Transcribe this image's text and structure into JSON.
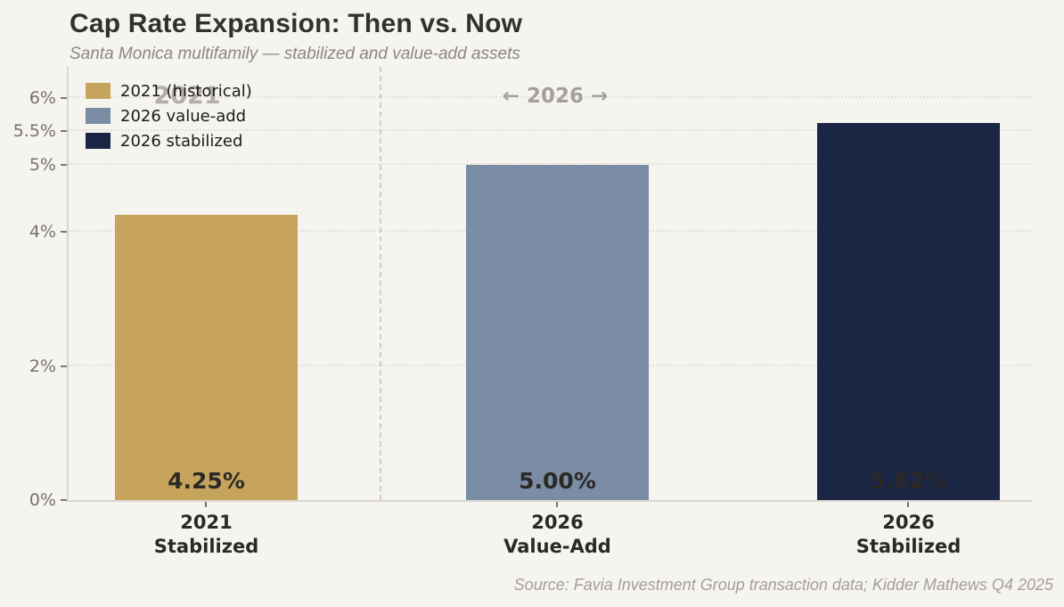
{
  "header": {
    "title": "Cap Rate Expansion: Then vs. Now",
    "subtitle": "Santa Monica multifamily — stabilized and value-add assets"
  },
  "annotations": {
    "left_era": "2021",
    "right_era": "← 2026 →"
  },
  "legend": {
    "items": [
      {
        "label": "2021 (historical)",
        "color": "#c6a45c"
      },
      {
        "label": "2026 value-add",
        "color": "#7b8da4"
      },
      {
        "label": "2026 stabilized",
        "color": "#1b2544"
      }
    ]
  },
  "source": "Source: Favia Investment Group transaction data; Kidder Mathews Q4 2025",
  "colors": {
    "background": "#f6f4ef",
    "gold": "#c6a45c",
    "slate": "#7b8da4",
    "navy": "#1b2544",
    "axis": "#d9d6d0",
    "separator": "#d0cdc7"
  },
  "chart_data": {
    "type": "bar",
    "title": "Cap Rate Expansion: Then vs. Now",
    "subtitle": "Santa Monica multifamily — stabilized and value-add assets",
    "categories": [
      "2021 Stabilized",
      "2026 Value-Add",
      "2026 Stabilized"
    ],
    "category_lines": [
      [
        "2021",
        "Stabilized"
      ],
      [
        "2026",
        "Value-Add"
      ],
      [
        "2026",
        "Stabilized"
      ]
    ],
    "values": [
      4.25,
      5.0,
      5.62
    ],
    "value_labels": [
      "4.25%",
      "5.00%",
      "5.62%"
    ],
    "bar_colors": [
      "#c6a45c",
      "#7b8da4",
      "#1b2544"
    ],
    "xlabel": "",
    "ylabel": "",
    "ylim": [
      0,
      6.5
    ],
    "yticks": [
      {
        "value": 0,
        "label": "0%"
      },
      {
        "value": 2,
        "label": "2%"
      },
      {
        "value": 4,
        "label": "4%"
      },
      {
        "value": 5,
        "label": "5%"
      },
      {
        "value": 5.5,
        "label": "5.5%"
      },
      {
        "value": 6,
        "label": "6%"
      }
    ],
    "grid": "horizontal-dotted",
    "legend_position": "upper-left",
    "era_separator_between": [
      "2021 Stabilized",
      "2026 Value-Add"
    ]
  }
}
